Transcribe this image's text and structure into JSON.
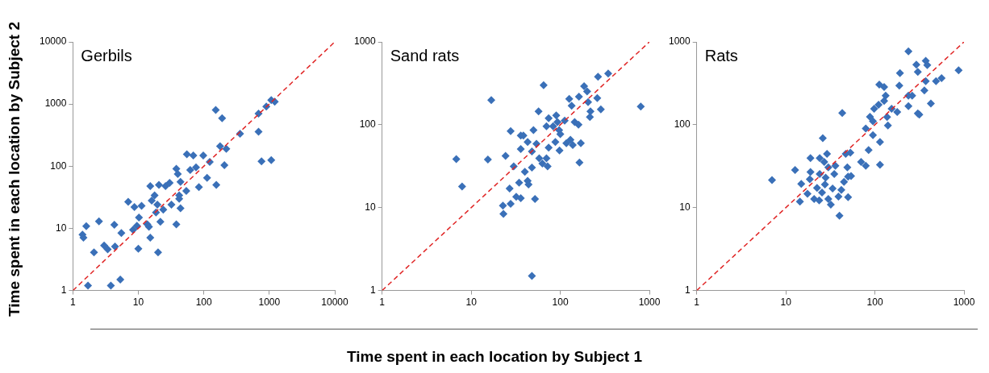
{
  "chart_data": [
    {
      "type": "scatter",
      "title": "Gerbils",
      "ylabel": "Time spent in each location by Subject 2",
      "log": "xy",
      "marker": "diamond",
      "xlim": [
        1,
        10000
      ],
      "ylim": [
        1,
        10000
      ],
      "xticks": [
        1,
        10,
        100,
        1000,
        10000
      ],
      "yticks": [
        1,
        10,
        100,
        1000,
        10000
      ],
      "series": [
        {
          "color": "#3a70b8",
          "x": [
            1.7,
            3.8,
            5.3,
            1.6,
            1.4,
            1.45,
            2.1,
            2.5,
            3.0,
            3.4,
            4.4,
            4.3,
            5.5,
            7,
            8.3,
            8.7,
            10,
            9.5,
            10.2,
            11.2,
            14.5,
            15.2,
            13.7,
            15.2,
            16,
            17.7,
            19.5,
            20,
            18.6,
            21.7,
            20.6,
            24,
            26,
            30,
            32,
            38,
            38,
            40,
            44,
            42,
            44,
            42,
            54,
            55,
            69,
            62,
            76,
            84,
            98,
            112,
            123,
            155,
            152,
            190,
            177,
            206,
            220,
            357,
            685,
            685,
            760,
            1070,
            900,
            1070,
            1210
          ],
          "values": [
            1.2,
            1.2,
            1.5,
            10.8,
            7.9,
            7.1,
            4.1,
            13,
            5.3,
            4.6,
            5.1,
            11.4,
            8.4,
            26.7,
            9.5,
            22,
            4.7,
            11,
            14.9,
            23,
            10.6,
            7.1,
            11.6,
            48,
            28,
            34,
            24,
            4.1,
            18,
            12.8,
            50,
            20,
            48,
            54,
            24,
            11.6,
            91,
            75,
            56,
            30,
            21,
            34,
            40,
            156,
            149,
            87,
            96,
            46,
            149,
            65,
            117,
            50,
            802,
            590,
            210,
            104,
            190,
            334,
            360,
            700,
            120,
            125,
            910,
            1160,
            1090
          ]
        },
        {
          "type": "line",
          "color": "#e02424",
          "line_style": "dashed",
          "marker": "none",
          "x": [
            1,
            10000
          ],
          "values": [
            1,
            10000
          ]
        }
      ]
    },
    {
      "type": "scatter",
      "title": "Sand rats",
      "xlabel": "Time spent in each location by Subject 1",
      "log": "xy",
      "marker": "diamond",
      "xlim": [
        1,
        1000
      ],
      "ylim": [
        1,
        1000
      ],
      "xticks": [
        1,
        10,
        100,
        1000
      ],
      "yticks": [
        1,
        10,
        100,
        1000
      ],
      "series": [
        {
          "color": "#3a70b8",
          "x": [
            48,
            6.8,
            7.9,
            15.4,
            16.8,
            22.7,
            23,
            27,
            27.7,
            27.7,
            24.3,
            30,
            32,
            36,
            34.5,
            36,
            38.5,
            36,
            40,
            43,
            44,
            48,
            52,
            48,
            43,
            50,
            54,
            58,
            63,
            72,
            70,
            74,
            57,
            65,
            70,
            74,
            83,
            90,
            93,
            97,
            100,
            88,
            98,
            112,
            117,
            130,
            138,
            170,
            164,
            126,
            134,
            145,
            160,
            162,
            185,
            200,
            205,
            218,
            215,
            260,
            265,
            285,
            345,
            800
          ],
          "values": [
            1.5,
            38.6,
            18,
            38,
            198,
            10.6,
            8.4,
            17,
            11.1,
            84,
            42,
            31.5,
            13.5,
            13,
            20,
            74,
            74,
            51,
            27,
            21,
            19,
            30.5,
            12.7,
            47.5,
            62,
            86,
            59,
            39.4,
            34,
            31.5,
            39.4,
            53,
            145,
            300,
            96,
            120,
            96,
            130,
            108,
            86,
            77,
            62,
            49,
            112,
            60,
            66,
            57,
            60,
            35,
            205,
            170,
            108,
            100,
            218,
            292,
            252,
            188,
            145,
            124,
            210,
            380,
            153,
            415,
            166
          ]
        },
        {
          "type": "line",
          "color": "#e02424",
          "line_style": "dashed",
          "marker": "none",
          "x": [
            1,
            1000
          ],
          "values": [
            1,
            1000
          ]
        }
      ]
    },
    {
      "type": "scatter",
      "title": "Rats",
      "log": "xy",
      "marker": "diamond",
      "xlim": [
        1,
        1000
      ],
      "ylim": [
        1,
        1000
      ],
      "xticks": [
        1,
        10,
        100,
        1000
      ],
      "yticks": [
        1,
        10,
        100,
        1000
      ],
      "series": [
        {
          "color": "#3a70b8",
          "x": [
            7,
            12.7,
            14.4,
            14.9,
            18.9,
            18.9,
            18.6,
            17.5,
            20.8,
            22.4,
            24,
            24,
            26,
            29,
            27,
            30,
            28,
            27.5,
            25.5,
            23.7,
            30,
            32,
            33.5,
            35,
            36,
            39,
            40,
            42,
            43,
            45,
            49,
            50,
            47,
            53,
            50,
            54,
            70,
            79,
            85,
            95,
            79,
            88,
            95,
            98,
            110,
            114,
            114,
            112,
            127,
            132,
            127,
            140,
            137,
            154,
            178,
            188,
            191,
            238,
            238,
            262,
            238,
            292,
            303,
            303,
            315,
            359,
            372,
            387,
            372,
            425,
            485,
            560,
            870
          ],
          "values": [
            21.5,
            28.5,
            11.8,
            19.3,
            39.7,
            26.9,
            22,
            14.7,
            12.7,
            17.3,
            25.5,
            39.7,
            69,
            44.5,
            35.6,
            30.6,
            23,
            19,
            15.2,
            12.2,
            12.7,
            10.9,
            17,
            25.5,
            32,
            13.6,
            8,
            16.4,
            139,
            20.5,
            30.6,
            23.7,
            44.5,
            46,
            13.4,
            24,
            35.6,
            32,
            49.5,
            75,
            90,
            125,
            110,
            156,
            174,
            62,
            33,
            305,
            285,
            225,
            194,
            98,
            124,
            156,
            143,
            297,
            420,
            168,
            225,
            225,
            770,
            530,
            435,
            137,
            133,
            260,
            590,
            525,
            335,
            180,
            335,
            365,
            455
          ]
        },
        {
          "type": "line",
          "color": "#e02424",
          "line_style": "dashed",
          "marker": "none",
          "x": [
            1,
            1000
          ],
          "values": [
            1,
            1000
          ]
        }
      ]
    }
  ]
}
